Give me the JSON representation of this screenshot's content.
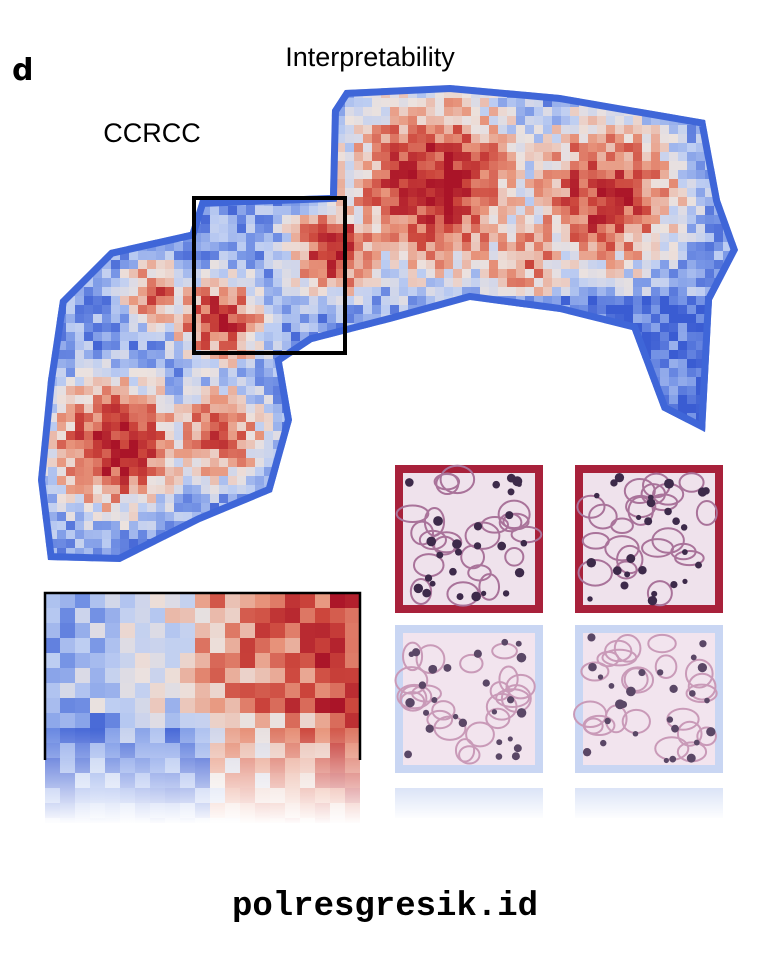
{
  "panel_label": "d",
  "title": "Interpretability",
  "subtitle": "CCRCC",
  "watermark": "polresgresik.id"
}
